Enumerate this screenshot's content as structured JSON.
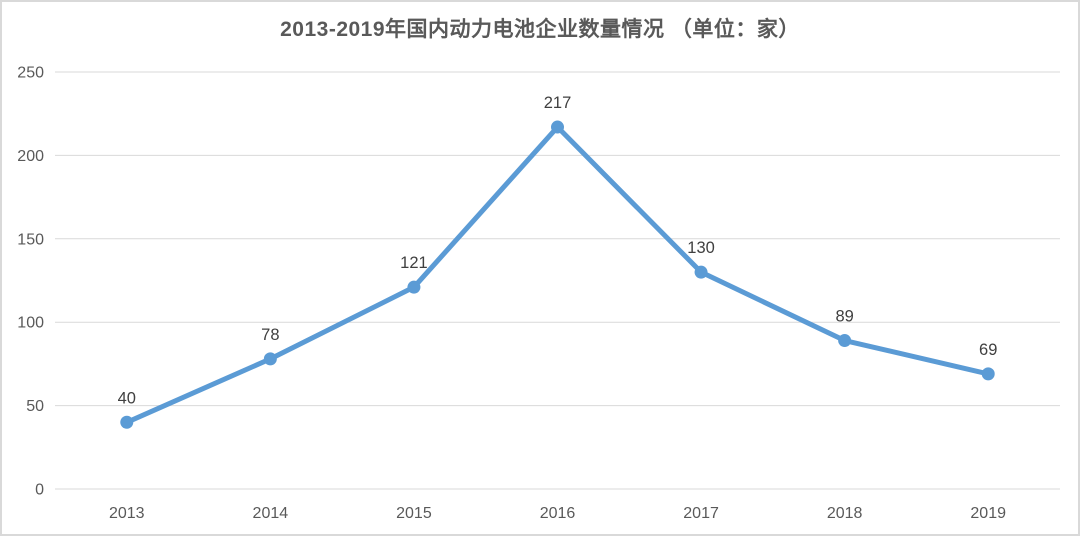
{
  "chart_data": {
    "type": "line",
    "title": "2013-2019年国内动力电池企业数量情况 （单位：家）",
    "categories": [
      "2013",
      "2014",
      "2015",
      "2016",
      "2017",
      "2018",
      "2019"
    ],
    "values": [
      40,
      78,
      121,
      217,
      130,
      89,
      69
    ],
    "xlabel": "",
    "ylabel": "",
    "ylim": [
      0,
      250
    ],
    "yticks": [
      0,
      50,
      100,
      150,
      200,
      250
    ],
    "grid": true,
    "legend_position": "none",
    "marker": "circle",
    "colors": {
      "line": "#5b9bd5",
      "marker": "#5b9bd5",
      "gridline": "#d9d9d9",
      "tick_label": "#595959",
      "data_label": "#404040",
      "title": "#595959",
      "frame_border": "#d9d9d9",
      "background": "#ffffff"
    }
  }
}
